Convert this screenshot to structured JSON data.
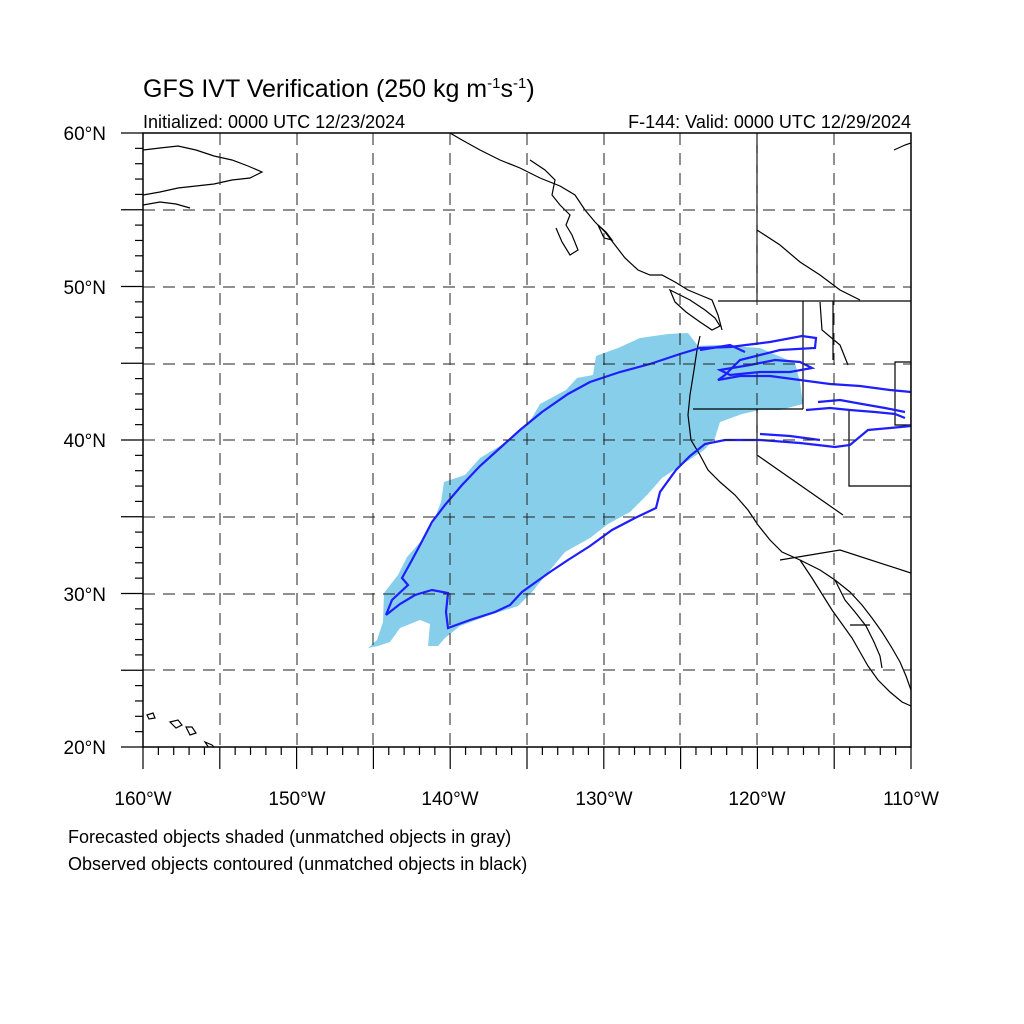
{
  "title": {
    "main": "GFS IVT Verification (250 kg m",
    "sup1": "-1",
    "mid": "s",
    "sup2": "-1",
    "end": ")"
  },
  "subtitle_left": "Initialized: 0000 UTC 12/23/2024",
  "subtitle_right": "F-144: Valid: 0000 UTC 12/29/2024",
  "map": {
    "lon_range": [
      -160,
      -110
    ],
    "lat_range": [
      20,
      60
    ],
    "projection": "equirectangular",
    "gridlines": "dashed every 5 degrees",
    "lat_labels": [
      "20°N",
      "30°N",
      "40°N",
      "50°N",
      "60°N"
    ],
    "lon_labels": [
      "160°W",
      "150°W",
      "140°W",
      "130°W",
      "120°W",
      "110°W"
    ],
    "forecast_color": "#87ceeb",
    "observed_color": "#0000ff",
    "coast_color": "#000000"
  },
  "caption": {
    "line1": "Forecasted objects shaded (unmatched objects in gray)",
    "line2": "Observed objects contoured (unmatched objects in black)"
  }
}
